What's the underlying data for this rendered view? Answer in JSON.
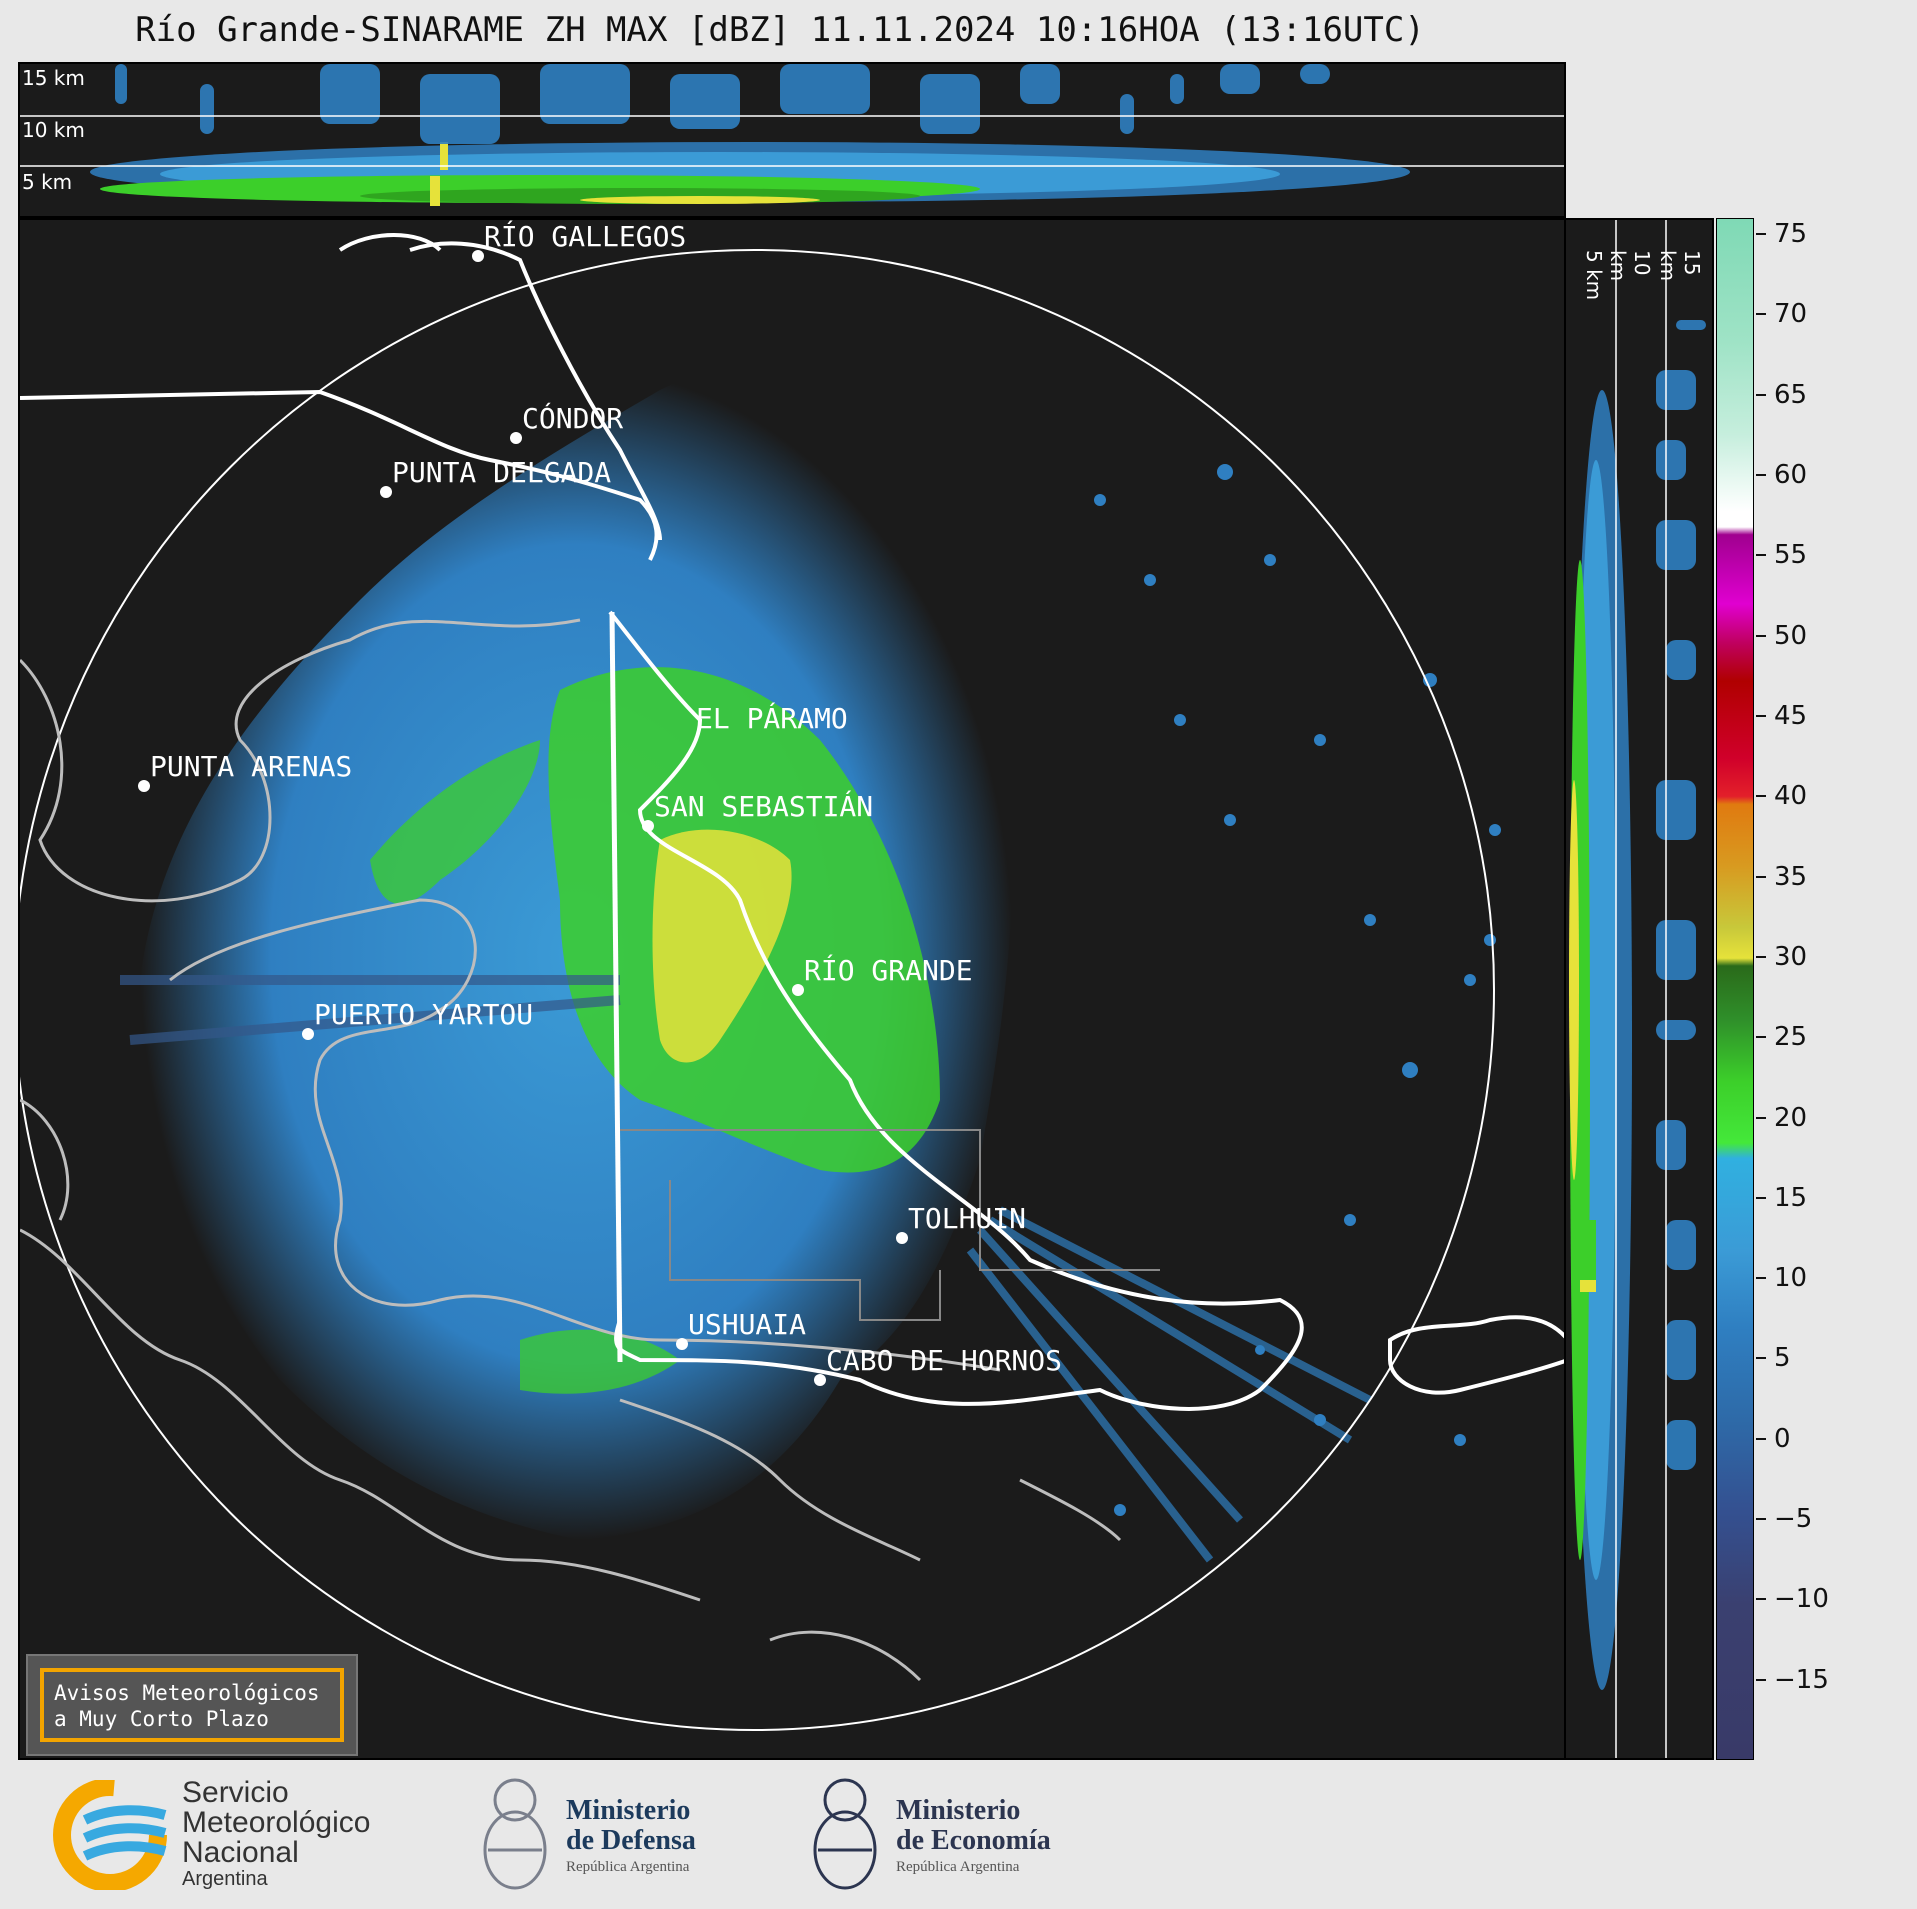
{
  "title": "Río Grande-SINARAME ZH MAX [dBZ] 11.11.2024 10:16HOA (13:16UTC)",
  "top_panel": {
    "height_labels": [
      "15 km",
      "10 km",
      "5 km"
    ]
  },
  "side_panel": {
    "height_labels": [
      "5 km",
      "10 km",
      "15 km"
    ]
  },
  "cities": [
    {
      "id": "rio-gallegos",
      "label": "RÍO GALLEGOS"
    },
    {
      "id": "condor",
      "label": "CÓNDOR"
    },
    {
      "id": "punta-delgada",
      "label": "PUNTA DELGADA"
    },
    {
      "id": "el-paramo",
      "label": "EL PÁRAMO"
    },
    {
      "id": "punta-arenas",
      "label": "PUNTA ARENAS"
    },
    {
      "id": "san-sebastian",
      "label": "SAN SEBASTIÁN"
    },
    {
      "id": "rio-grande",
      "label": "RÍO GRANDE"
    },
    {
      "id": "puerto-yartou",
      "label": "PUERTO YARTOU"
    },
    {
      "id": "tolhuin",
      "label": "TOLHUIN"
    },
    {
      "id": "ushuaia",
      "label": "USHUAIA"
    },
    {
      "id": "cabo-de-hornos",
      "label": "CABO DE HORNOS"
    }
  ],
  "colorbar": {
    "unit": "dBZ",
    "ticks": [
      "75",
      "70",
      "65",
      "60",
      "55",
      "50",
      "45",
      "40",
      "35",
      "30",
      "25",
      "20",
      "15",
      "10",
      "5",
      "0",
      "−5",
      "−10",
      "−15"
    ],
    "range": [
      -20,
      76
    ]
  },
  "avisos": {
    "line1": "Avisos Meteorológicos",
    "line2": "a Muy Corto Plazo"
  },
  "footer": {
    "smn": {
      "line1": "Servicio",
      "line2": "Meteorológico",
      "line3": "Nacional",
      "line4": "Argentina"
    },
    "defensa": {
      "line1": "Ministerio",
      "line2": "de Defensa",
      "line3": "República Argentina"
    },
    "economia": {
      "line1": "Ministerio",
      "line2": "de Economía",
      "line3": "República Argentina"
    }
  },
  "colors": {
    "background": "#1b1b1b",
    "light": "#3b9bd6",
    "moderate": "#3ccf2a",
    "strong": "#e6e23a",
    "avisos_border": "#f2a400"
  }
}
